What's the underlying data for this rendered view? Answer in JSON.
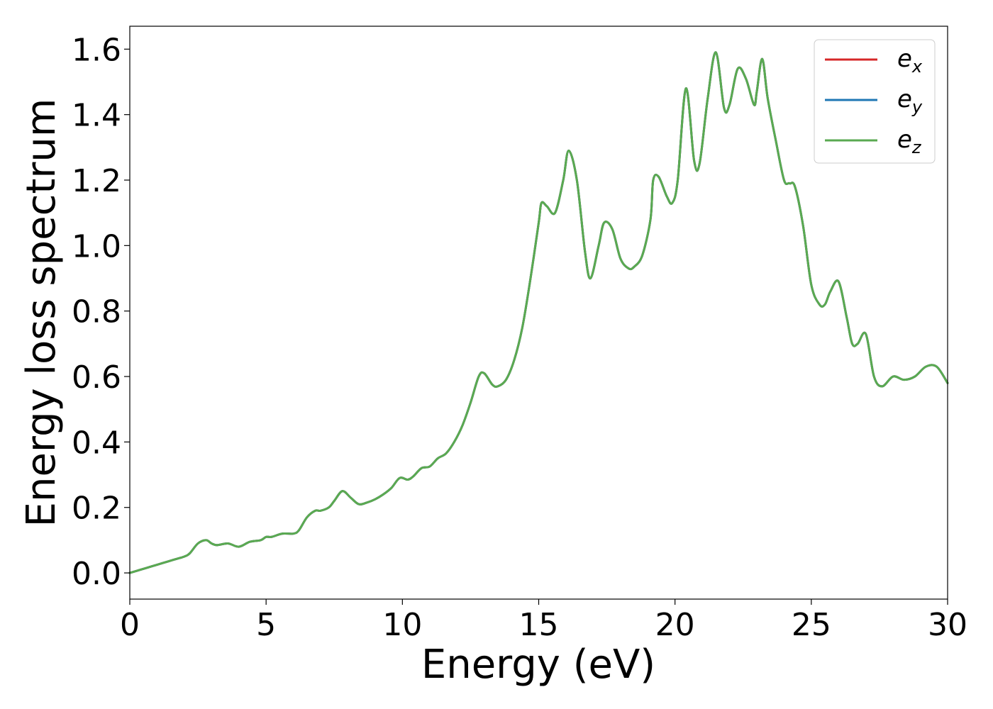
{
  "chart_data": {
    "type": "line",
    "title": "",
    "xlabel": "Energy (eV)",
    "ylabel": "Energy loss spectrum",
    "xlim": [
      0,
      30
    ],
    "ylim": [
      -0.08,
      1.67
    ],
    "xticks": [
      0,
      5,
      10,
      15,
      20,
      25,
      30
    ],
    "xtick_labels": [
      "0",
      "5",
      "10",
      "15",
      "20",
      "25",
      "30"
    ],
    "yticks": [
      0.0,
      0.2,
      0.4,
      0.6,
      0.8,
      1.0,
      1.2,
      1.4,
      1.6
    ],
    "ytick_labels": [
      "0.0",
      "0.2",
      "0.4",
      "0.6",
      "0.8",
      "1.0",
      "1.2",
      "1.4",
      "1.6"
    ],
    "grid": false,
    "legend_position": "top-right",
    "x": [
      0,
      0.4,
      0.8,
      1.2,
      1.6,
      2.0,
      2.2,
      2.5,
      2.8,
      3.0,
      3.2,
      3.6,
      4.0,
      4.4,
      4.8,
      5.0,
      5.2,
      5.6,
      6.0,
      6.2,
      6.5,
      6.8,
      7.0,
      7.3,
      7.5,
      7.8,
      8.1,
      8.4,
      8.7,
      9.0,
      9.3,
      9.6,
      9.9,
      10.2,
      10.4,
      10.7,
      11.0,
      11.3,
      11.6,
      11.9,
      12.2,
      12.5,
      12.8,
      13.0,
      13.3,
      13.5,
      13.8,
      14.1,
      14.4,
      14.7,
      15.0,
      15.1,
      15.3,
      15.6,
      15.9,
      16.1,
      16.4,
      16.7,
      16.9,
      17.2,
      17.4,
      17.7,
      18.0,
      18.3,
      18.5,
      18.8,
      19.1,
      19.2,
      19.4,
      19.7,
      19.9,
      20.1,
      20.4,
      20.7,
      20.9,
      21.2,
      21.5,
      21.8,
      22.0,
      22.3,
      22.6,
      22.9,
      23.0,
      23.2,
      23.4,
      23.7,
      24.0,
      24.2,
      24.4,
      24.7,
      25.0,
      25.3,
      25.5,
      25.7,
      26.0,
      26.3,
      26.5,
      26.7,
      27.0,
      27.3,
      27.6,
      28.0,
      28.4,
      28.8,
      29.2,
      29.6,
      30.0
    ],
    "series": [
      {
        "name": "e",
        "name_sub": "x",
        "color": "#d62728",
        "values": [
          0.0,
          0.01,
          0.02,
          0.03,
          0.04,
          0.05,
          0.06,
          0.09,
          0.1,
          0.09,
          0.085,
          0.09,
          0.08,
          0.095,
          0.1,
          0.11,
          0.11,
          0.12,
          0.12,
          0.13,
          0.17,
          0.19,
          0.19,
          0.2,
          0.22,
          0.25,
          0.23,
          0.21,
          0.215,
          0.225,
          0.24,
          0.26,
          0.29,
          0.285,
          0.295,
          0.32,
          0.325,
          0.35,
          0.365,
          0.4,
          0.45,
          0.52,
          0.6,
          0.61,
          0.575,
          0.57,
          0.59,
          0.65,
          0.75,
          0.9,
          1.07,
          1.13,
          1.12,
          1.1,
          1.2,
          1.29,
          1.2,
          0.98,
          0.9,
          1.0,
          1.07,
          1.05,
          0.96,
          0.93,
          0.935,
          0.97,
          1.08,
          1.2,
          1.21,
          1.15,
          1.13,
          1.2,
          1.48,
          1.26,
          1.25,
          1.45,
          1.59,
          1.42,
          1.43,
          1.54,
          1.51,
          1.43,
          1.47,
          1.57,
          1.45,
          1.32,
          1.2,
          1.19,
          1.18,
          1.06,
          0.88,
          0.82,
          0.82,
          0.86,
          0.89,
          0.78,
          0.7,
          0.7,
          0.73,
          0.6,
          0.57,
          0.6,
          0.59,
          0.6,
          0.63,
          0.63,
          0.58
        ]
      },
      {
        "name": "e",
        "name_sub": "y",
        "color": "#1f77b4",
        "values": [
          0.0,
          0.01,
          0.02,
          0.03,
          0.04,
          0.05,
          0.06,
          0.09,
          0.1,
          0.09,
          0.085,
          0.09,
          0.08,
          0.095,
          0.1,
          0.11,
          0.11,
          0.12,
          0.12,
          0.13,
          0.17,
          0.19,
          0.19,
          0.2,
          0.22,
          0.25,
          0.23,
          0.21,
          0.215,
          0.225,
          0.24,
          0.26,
          0.29,
          0.285,
          0.295,
          0.32,
          0.325,
          0.35,
          0.365,
          0.4,
          0.45,
          0.52,
          0.6,
          0.61,
          0.575,
          0.57,
          0.59,
          0.65,
          0.75,
          0.9,
          1.07,
          1.13,
          1.12,
          1.1,
          1.2,
          1.29,
          1.2,
          0.98,
          0.9,
          1.0,
          1.07,
          1.05,
          0.96,
          0.93,
          0.935,
          0.97,
          1.08,
          1.2,
          1.21,
          1.15,
          1.13,
          1.2,
          1.48,
          1.26,
          1.25,
          1.45,
          1.59,
          1.42,
          1.43,
          1.54,
          1.51,
          1.43,
          1.47,
          1.57,
          1.45,
          1.32,
          1.2,
          1.19,
          1.18,
          1.06,
          0.88,
          0.82,
          0.82,
          0.86,
          0.89,
          0.78,
          0.7,
          0.7,
          0.73,
          0.6,
          0.57,
          0.6,
          0.59,
          0.6,
          0.63,
          0.63,
          0.58
        ]
      },
      {
        "name": "e",
        "name_sub": "z",
        "color": "#5aaa51",
        "values": [
          0.0,
          0.01,
          0.02,
          0.03,
          0.04,
          0.05,
          0.06,
          0.09,
          0.1,
          0.09,
          0.085,
          0.09,
          0.08,
          0.095,
          0.1,
          0.11,
          0.11,
          0.12,
          0.12,
          0.13,
          0.17,
          0.19,
          0.19,
          0.2,
          0.22,
          0.25,
          0.23,
          0.21,
          0.215,
          0.225,
          0.24,
          0.26,
          0.29,
          0.285,
          0.295,
          0.32,
          0.325,
          0.35,
          0.365,
          0.4,
          0.45,
          0.52,
          0.6,
          0.61,
          0.575,
          0.57,
          0.59,
          0.65,
          0.75,
          0.9,
          1.07,
          1.13,
          1.12,
          1.1,
          1.2,
          1.29,
          1.2,
          0.98,
          0.9,
          1.0,
          1.07,
          1.05,
          0.96,
          0.93,
          0.935,
          0.97,
          1.08,
          1.2,
          1.21,
          1.15,
          1.13,
          1.2,
          1.48,
          1.26,
          1.25,
          1.45,
          1.59,
          1.42,
          1.43,
          1.54,
          1.51,
          1.43,
          1.47,
          1.57,
          1.45,
          1.32,
          1.2,
          1.19,
          1.18,
          1.06,
          0.88,
          0.82,
          0.82,
          0.86,
          0.89,
          0.78,
          0.7,
          0.7,
          0.73,
          0.6,
          0.57,
          0.6,
          0.59,
          0.6,
          0.63,
          0.63,
          0.58
        ]
      }
    ]
  }
}
